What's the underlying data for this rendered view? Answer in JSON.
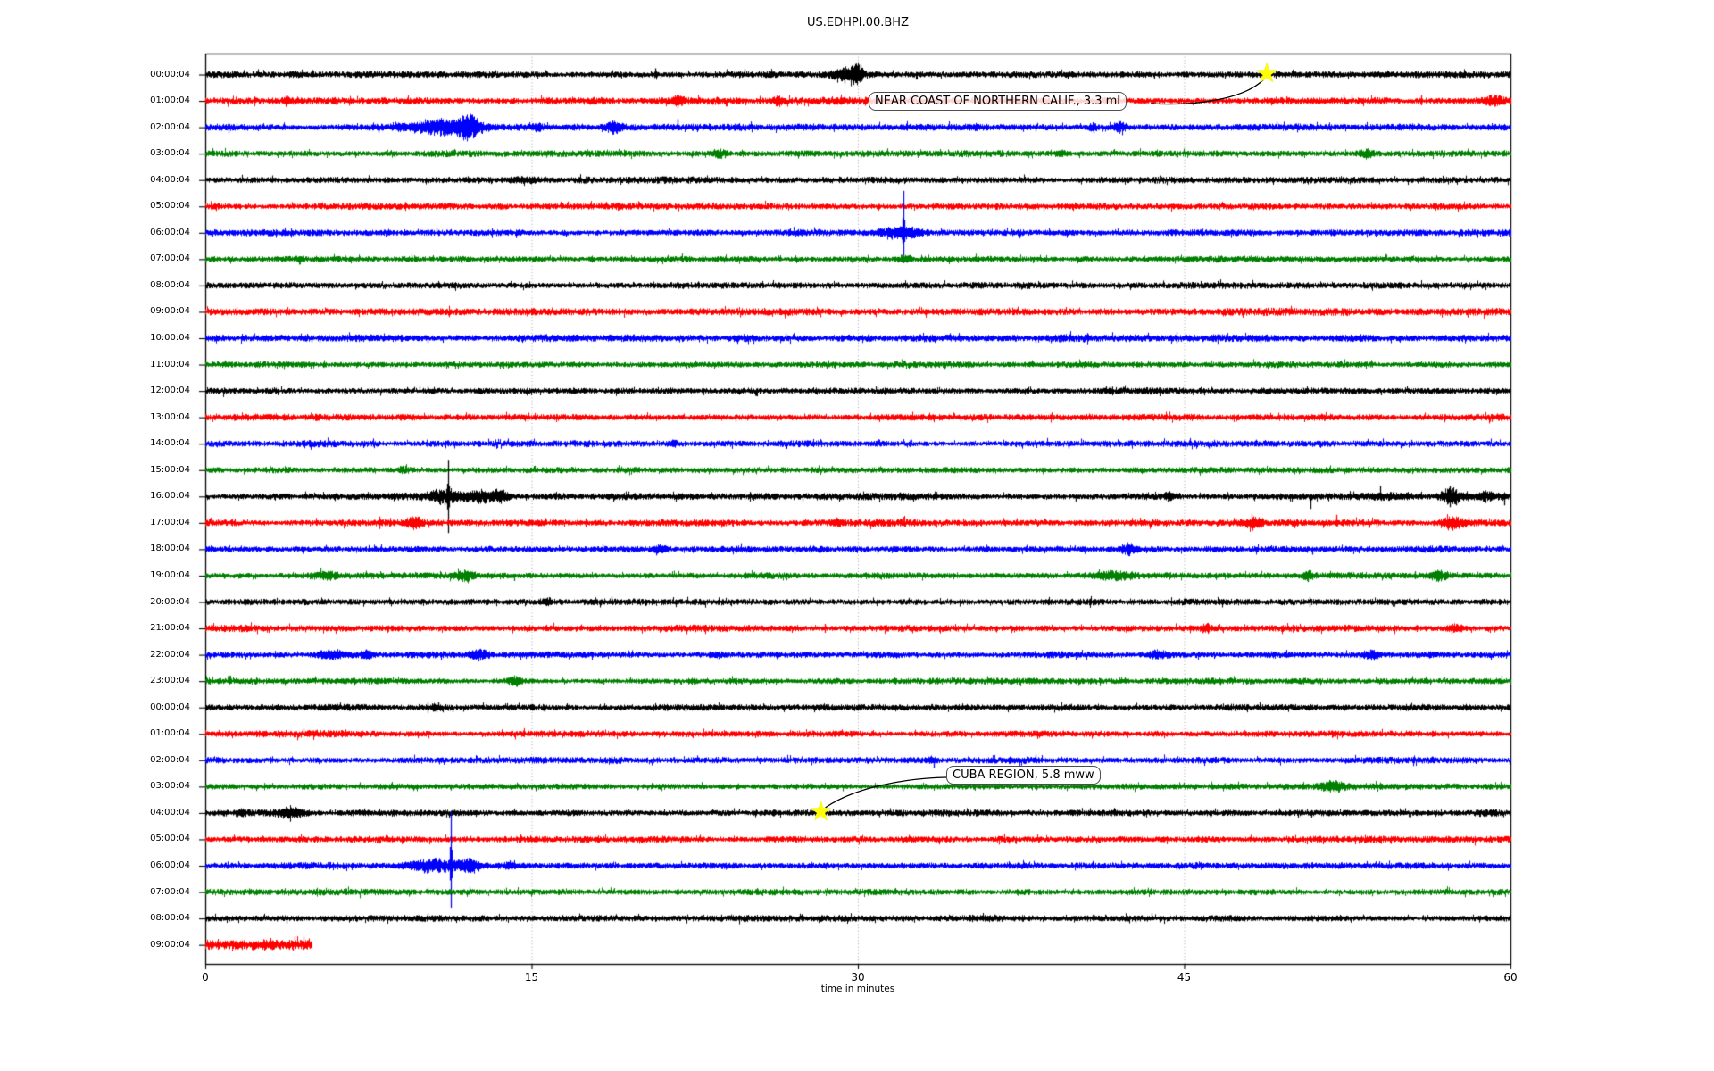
{
  "title": "US.EDHPI.00.BHZ",
  "xlabel": "time in minutes",
  "annotations": [
    {
      "text": "NEAR COAST OF NORTHERN CALIF., 3.3 ml",
      "row": 0,
      "minute": 48.8
    },
    {
      "text": "CUBA REGION, 5.8 mww",
      "row": 28,
      "minute": 28.3
    }
  ],
  "chart_data": {
    "type": "line",
    "subtype": "seismogram-dayplot",
    "title": "US.EDHPI.00.BHZ",
    "xlabel": "time in minutes",
    "x_range_minutes": [
      0,
      60
    ],
    "x_ticks": [
      "0",
      "15",
      "30",
      "45",
      "60"
    ],
    "x_gridlines_minutes": [
      15,
      30,
      45
    ],
    "grid": "vertical-dotted",
    "trace_color_cycle": [
      "#000000",
      "#ff0000",
      "#0000ff",
      "#008000"
    ],
    "marker_color": "#ffff00",
    "events_marked": [
      {
        "label": "NEAR COAST OF NORTHERN CALIF., 3.3 ml",
        "row": 0,
        "minute": 48.8
      },
      {
        "label": "CUBA REGION, 5.8 mww",
        "row": 28,
        "minute": 28.3
      }
    ],
    "rows": [
      {
        "label": "00:00:04",
        "color": "#000000",
        "amp": 1.0,
        "dur": 60,
        "bursts": [
          [
            29.4,
            0.9,
            5
          ],
          [
            30.0,
            0.35,
            8
          ],
          [
            4.2,
            0.6,
            2
          ],
          [
            20.7,
            0.15,
            3
          ],
          [
            55.0,
            4,
            0.6
          ]
        ],
        "spikes": [
          [
            20.7,
            7,
            3
          ],
          [
            29.9,
            10,
            9
          ]
        ]
      },
      {
        "label": "01:00:04",
        "color": "#ff0000",
        "amp": 1.1,
        "dur": 60,
        "bursts": [
          [
            21.7,
            0.4,
            4
          ],
          [
            26.3,
            0.3,
            3
          ],
          [
            59.2,
            0.6,
            4
          ],
          [
            3.8,
            0.2,
            2.5
          ]
        ],
        "spikes": [
          [
            21.6,
            6,
            5
          ],
          [
            26.3,
            4,
            4
          ],
          [
            55.9,
            6,
            5
          ],
          [
            59.0,
            6,
            5
          ],
          [
            3.8,
            4,
            3
          ]
        ]
      },
      {
        "label": "02:00:04",
        "color": "#0000ff",
        "amp": 1.15,
        "dur": 60,
        "bursts": [
          [
            10.8,
            2.4,
            6
          ],
          [
            12.1,
            0.7,
            8
          ],
          [
            18.8,
            0.6,
            4
          ],
          [
            15.3,
            0.3,
            3
          ],
          [
            42.0,
            0.4,
            3.5
          ],
          [
            40.8,
            0.2,
            3
          ]
        ],
        "spikes": [
          [
            21.7,
            9,
            4
          ],
          [
            40.8,
            5,
            4
          ],
          [
            12.0,
            12,
            10
          ]
        ]
      },
      {
        "label": "03:00:04",
        "color": "#008000",
        "amp": 1.0,
        "dur": 60,
        "bursts": [
          [
            23.6,
            0.5,
            3
          ],
          [
            39.3,
            0.3,
            2
          ],
          [
            53.4,
            0.5,
            3
          ]
        ],
        "spikes": [
          [
            23.9,
            2,
            5
          ]
        ]
      },
      {
        "label": "04:00:04",
        "color": "#000000",
        "amp": 0.95,
        "dur": 60,
        "bursts": [
          [
            14.7,
            0.9,
            1.5
          ]
        ],
        "spikes": [
          [
            53.6,
            3,
            3
          ]
        ]
      },
      {
        "label": "05:00:04",
        "color": "#ff0000",
        "amp": 1.05,
        "dur": 60,
        "bursts": [],
        "spikes": []
      },
      {
        "label": "06:00:04",
        "color": "#0000ff",
        "amp": 1.05,
        "dur": 60,
        "bursts": [
          [
            32.0,
            1.3,
            4.5
          ]
        ],
        "spikes": [
          [
            32.1,
            47,
            34
          ]
        ]
      },
      {
        "label": "07:00:04",
        "color": "#008000",
        "amp": 1.0,
        "dur": 60,
        "bursts": [
          [
            32.1,
            0.4,
            2
          ]
        ],
        "spikes": []
      },
      {
        "label": "08:00:04",
        "color": "#000000",
        "amp": 0.95,
        "dur": 60,
        "bursts": [],
        "spikes": []
      },
      {
        "label": "09:00:04",
        "color": "#ff0000",
        "amp": 1.2,
        "dur": 60,
        "bursts": [],
        "spikes": []
      },
      {
        "label": "10:00:04",
        "color": "#0000ff",
        "amp": 1.15,
        "dur": 60,
        "bursts": [],
        "spikes": []
      },
      {
        "label": "11:00:04",
        "color": "#008000",
        "amp": 1.0,
        "dur": 60,
        "bursts": [],
        "spikes": []
      },
      {
        "label": "12:00:04",
        "color": "#000000",
        "amp": 0.95,
        "dur": 60,
        "bursts": [],
        "spikes": []
      },
      {
        "label": "13:00:04",
        "color": "#ff0000",
        "amp": 1.05,
        "dur": 60,
        "bursts": [],
        "spikes": []
      },
      {
        "label": "14:00:04",
        "color": "#0000ff",
        "amp": 1.05,
        "dur": 60,
        "bursts": [
          [
            21.5,
            0.3,
            2
          ]
        ],
        "spikes": []
      },
      {
        "label": "15:00:04",
        "color": "#008000",
        "amp": 1.0,
        "dur": 60,
        "bursts": [
          [
            9.1,
            0.3,
            2.5
          ]
        ],
        "spikes": [
          [
            9.1,
            4,
            2
          ],
          [
            44.9,
            3,
            1
          ]
        ]
      },
      {
        "label": "16:00:04",
        "color": "#000000",
        "amp": 1.0,
        "dur": 60,
        "bursts": [
          [
            10.9,
            0.9,
            6
          ],
          [
            12.5,
            1.3,
            5
          ],
          [
            13.6,
            0.5,
            4
          ],
          [
            44.3,
            0.3,
            3
          ],
          [
            54.5,
            1.5,
            2.5
          ],
          [
            57.3,
            0.7,
            7
          ],
          [
            58.8,
            0.8,
            3
          ]
        ],
        "spikes": [
          [
            11.15,
            41,
            41
          ],
          [
            9.7,
            4,
            4
          ],
          [
            40.0,
            2,
            6
          ],
          [
            50.8,
            3,
            14
          ],
          [
            54.0,
            12,
            4
          ],
          [
            57.2,
            12,
            12
          ],
          [
            57.5,
            8,
            10
          ],
          [
            59.7,
            2,
            10
          ]
        ]
      },
      {
        "label": "17:00:04",
        "color": "#ff0000",
        "amp": 1.1,
        "dur": 60,
        "bursts": [
          [
            9.6,
            0.5,
            4
          ],
          [
            29.0,
            0.3,
            3
          ],
          [
            48.2,
            0.5,
            5
          ],
          [
            57.3,
            0.7,
            5
          ]
        ],
        "spikes": [
          [
            8.0,
            7,
            7
          ],
          [
            17.5,
            5,
            5
          ],
          [
            35.3,
            3,
            3
          ],
          [
            46.8,
            3,
            3
          ],
          [
            48.2,
            7,
            6
          ],
          [
            52.0,
            9,
            4
          ],
          [
            55.0,
            3,
            3
          ]
        ]
      },
      {
        "label": "18:00:04",
        "color": "#0000ff",
        "amp": 1.05,
        "dur": 60,
        "bursts": [
          [
            20.9,
            0.4,
            3
          ],
          [
            42.4,
            0.5,
            3.5
          ]
        ],
        "spikes": [
          [
            50.9,
            2,
            6
          ]
        ]
      },
      {
        "label": "19:00:04",
        "color": "#008000",
        "amp": 1.0,
        "dur": 60,
        "bursts": [
          [
            5.6,
            0.7,
            3
          ],
          [
            11.9,
            0.6,
            3.5
          ],
          [
            41.8,
            1.3,
            3
          ],
          [
            50.7,
            0.3,
            4
          ],
          [
            56.7,
            0.6,
            4
          ]
        ],
        "spikes": [
          [
            5.3,
            9,
            2
          ],
          [
            6.0,
            4,
            4
          ],
          [
            14.2,
            1,
            6
          ],
          [
            46.6,
            3,
            3
          ],
          [
            50.7,
            1,
            7
          ],
          [
            55.6,
            5,
            4
          ]
        ]
      },
      {
        "label": "20:00:04",
        "color": "#000000",
        "amp": 0.95,
        "dur": 60,
        "bursts": [
          [
            15.7,
            0.3,
            2.5
          ]
        ],
        "spikes": [
          [
            2.7,
            3,
            3
          ],
          [
            35.5,
            2,
            2
          ]
        ]
      },
      {
        "label": "21:00:04",
        "color": "#ff0000",
        "amp": 1.05,
        "dur": 60,
        "bursts": [
          [
            46.0,
            0.3,
            3
          ],
          [
            57.5,
            0.5,
            3
          ]
        ],
        "spikes": [
          [
            28.5,
            5,
            5
          ],
          [
            55.7,
            4,
            4
          ]
        ]
      },
      {
        "label": "22:00:04",
        "color": "#0000ff",
        "amp": 1.05,
        "dur": 60,
        "bursts": [
          [
            5.8,
            0.9,
            3.5
          ],
          [
            7.4,
            0.4,
            3
          ],
          [
            12.6,
            0.6,
            4
          ],
          [
            43.8,
            0.6,
            3
          ],
          [
            53.6,
            0.5,
            3
          ]
        ],
        "spikes": [
          [
            12.5,
            4,
            4
          ]
        ]
      },
      {
        "label": "23:00:04",
        "color": "#008000",
        "amp": 1.0,
        "dur": 60,
        "bursts": [
          [
            14.2,
            0.5,
            3.5
          ],
          [
            22.4,
            0.3,
            2.5
          ]
        ],
        "spikes": [
          [
            18.3,
            2,
            4
          ]
        ]
      },
      {
        "label": "00:00:04",
        "color": "#000000",
        "amp": 0.95,
        "dur": 60,
        "bursts": [
          [
            10.6,
            0.3,
            2
          ]
        ],
        "spikes": [
          [
            10.7,
            6,
            2
          ]
        ]
      },
      {
        "label": "01:00:04",
        "color": "#ff0000",
        "amp": 1.05,
        "dur": 60,
        "bursts": [],
        "spikes": []
      },
      {
        "label": "02:00:04",
        "color": "#0000ff",
        "amp": 1.05,
        "dur": 60,
        "bursts": [
          [
            33.4,
            0.3,
            2
          ]
        ],
        "spikes": [
          [
            33.5,
            2,
            9
          ]
        ]
      },
      {
        "label": "03:00:04",
        "color": "#008000",
        "amp": 1.0,
        "dur": 60,
        "bursts": [
          [
            51.8,
            0.7,
            4
          ]
        ],
        "spikes": []
      },
      {
        "label": "04:00:04",
        "color": "#000000",
        "amp": 0.95,
        "dur": 60,
        "bursts": [
          [
            3.9,
            1.0,
            3.5
          ],
          [
            1.6,
            0.3,
            2
          ]
        ],
        "spikes": []
      },
      {
        "label": "05:00:04",
        "color": "#ff0000",
        "amp": 1.05,
        "dur": 60,
        "bursts": [],
        "spikes": []
      },
      {
        "label": "06:00:04",
        "color": "#0000ff",
        "amp": 1.05,
        "dur": 60,
        "bursts": [
          [
            10.5,
            1.8,
            5
          ],
          [
            12.2,
            0.7,
            5
          ],
          [
            14.0,
            0.4,
            2.5
          ]
        ],
        "spikes": [
          [
            11.3,
            60,
            47
          ]
        ]
      },
      {
        "label": "07:00:04",
        "color": "#008000",
        "amp": 1.0,
        "dur": 60,
        "bursts": [],
        "spikes": []
      },
      {
        "label": "08:00:04",
        "color": "#000000",
        "amp": 0.95,
        "dur": 60,
        "bursts": [],
        "spikes": []
      },
      {
        "label": "09:00:04",
        "color": "#ff0000",
        "amp": 1.8,
        "dur": 4.9,
        "bursts": [],
        "spikes": []
      }
    ]
  }
}
